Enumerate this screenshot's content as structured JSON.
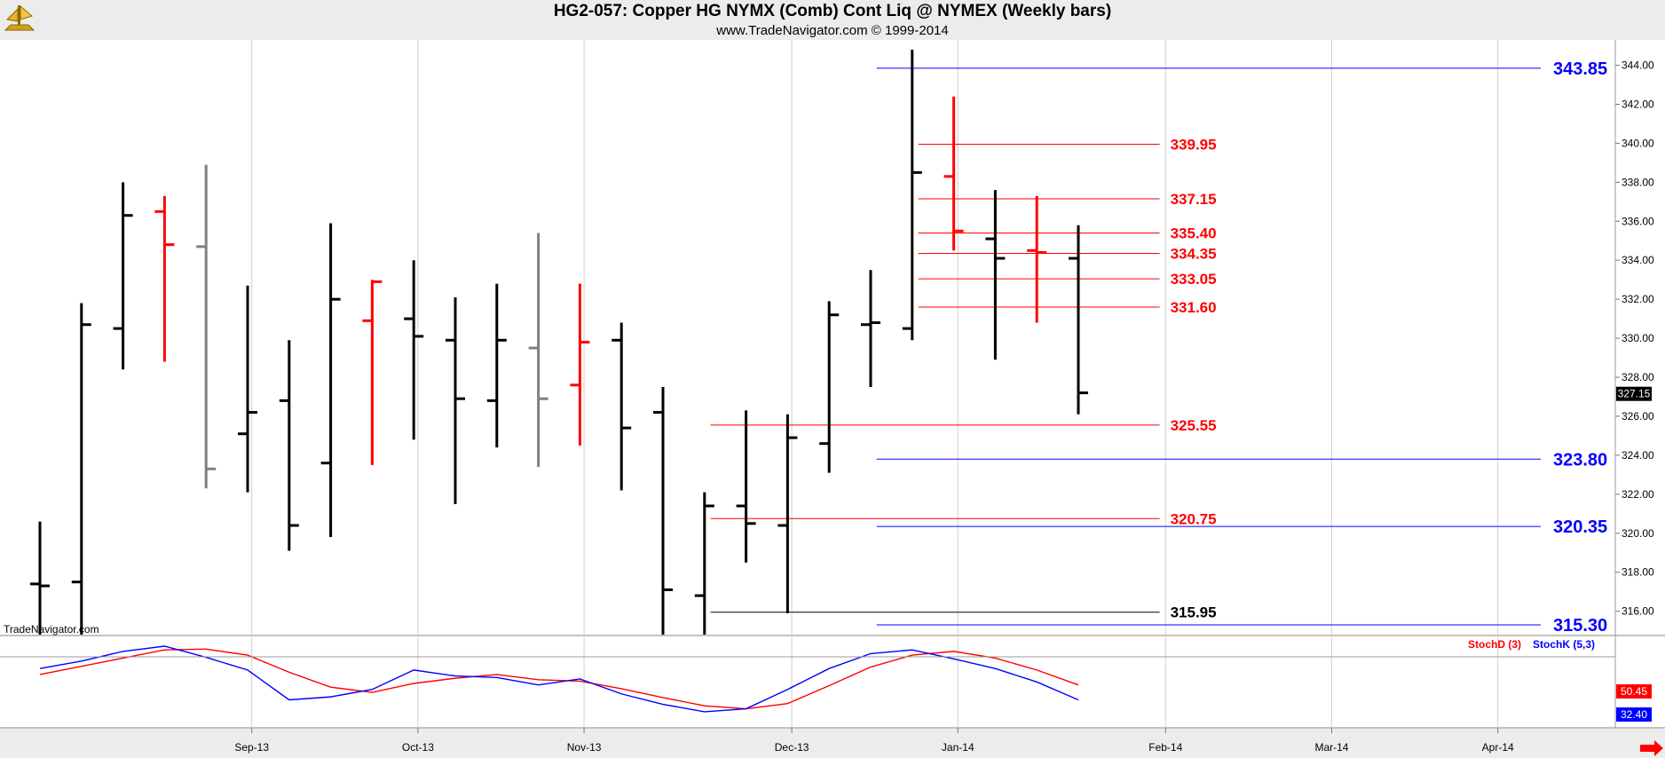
{
  "chart_data": {
    "type": "ohlc",
    "title": "HG2-057:  Copper HG NYMX (Comb) Cont Liq @ NYMEX  (Weekly bars)",
    "subtitle": "www.TradeNavigator.com © 1999-2014",
    "watermark": "TradeNavigator.com",
    "y_ticks": [
      "316.00",
      "318.00",
      "320.00",
      "322.00",
      "324.00",
      "326.00",
      "328.00",
      "330.00",
      "332.00",
      "334.00",
      "336.00",
      "338.00",
      "340.00",
      "342.00",
      "344.00"
    ],
    "ylim": [
      314.8,
      345.3
    ],
    "last_price": "327.15",
    "x_labels": [
      {
        "label": "Sep-13",
        "index": 5.1
      },
      {
        "label": "Oct-13",
        "index": 9.1
      },
      {
        "label": "Nov-13",
        "index": 13.1
      },
      {
        "label": "Dec-13",
        "index": 18.1
      },
      {
        "label": "Jan-14",
        "index": 22.1
      },
      {
        "label": "Feb-14",
        "index": 27.1
      },
      {
        "label": "Mar-14",
        "index": 31.1
      },
      {
        "label": "Apr-14",
        "index": 35.1
      }
    ],
    "bars": [
      {
        "o": 317.4,
        "h": 320.6,
        "l": 314.8,
        "c": 317.3,
        "color": "#000000"
      },
      {
        "o": 317.5,
        "h": 331.8,
        "l": 314.8,
        "c": 330.7,
        "color": "#000000"
      },
      {
        "o": 330.5,
        "h": 338.0,
        "l": 328.4,
        "c": 336.3,
        "color": "#000000"
      },
      {
        "o": 336.5,
        "h": 337.3,
        "l": 328.8,
        "c": 334.8,
        "color": "#ff0000"
      },
      {
        "o": 334.7,
        "h": 338.9,
        "l": 322.3,
        "c": 323.3,
        "color": "#808080"
      },
      {
        "o": 325.1,
        "h": 332.7,
        "l": 322.1,
        "c": 326.2,
        "color": "#000000"
      },
      {
        "o": 326.8,
        "h": 329.9,
        "l": 319.1,
        "c": 320.4,
        "color": "#000000"
      },
      {
        "o": 323.6,
        "h": 335.9,
        "l": 319.8,
        "c": 332.0,
        "color": "#000000"
      },
      {
        "o": 330.9,
        "h": 333.0,
        "l": 323.5,
        "c": 332.9,
        "color": "#ff0000"
      },
      {
        "o": 331.0,
        "h": 334.0,
        "l": 324.8,
        "c": 330.1,
        "color": "#000000"
      },
      {
        "o": 329.9,
        "h": 332.1,
        "l": 321.5,
        "c": 326.9,
        "color": "#000000"
      },
      {
        "o": 326.8,
        "h": 332.8,
        "l": 324.4,
        "c": 329.9,
        "color": "#000000"
      },
      {
        "o": 329.5,
        "h": 335.4,
        "l": 323.4,
        "c": 326.9,
        "color": "#808080"
      },
      {
        "o": 327.6,
        "h": 332.8,
        "l": 324.5,
        "c": 329.8,
        "color": "#ff0000"
      },
      {
        "o": 329.9,
        "h": 330.8,
        "l": 322.2,
        "c": 325.4,
        "color": "#000000"
      },
      {
        "o": 326.2,
        "h": 327.5,
        "l": 314.8,
        "c": 317.1,
        "color": "#000000"
      },
      {
        "o": 316.8,
        "h": 322.1,
        "l": 314.8,
        "c": 321.4,
        "color": "#000000"
      },
      {
        "o": 321.4,
        "h": 326.3,
        "l": 318.5,
        "c": 320.5,
        "color": "#000000"
      },
      {
        "o": 320.4,
        "h": 326.1,
        "l": 315.9,
        "c": 324.9,
        "color": "#000000"
      },
      {
        "o": 324.6,
        "h": 331.9,
        "l": 323.1,
        "c": 331.2,
        "color": "#000000"
      },
      {
        "o": 330.7,
        "h": 333.5,
        "l": 327.5,
        "c": 330.8,
        "color": "#000000"
      },
      {
        "o": 330.5,
        "h": 344.8,
        "l": 329.9,
        "c": 338.5,
        "color": "#000000"
      },
      {
        "o": 338.3,
        "h": 342.4,
        "l": 334.5,
        "c": 335.5,
        "color": "#ff0000"
      },
      {
        "o": 335.1,
        "h": 337.6,
        "l": 328.9,
        "c": 334.1,
        "color": "#000000"
      },
      {
        "o": 334.5,
        "h": 337.3,
        "l": 330.8,
        "c": 334.4,
        "color": "#ff0000"
      },
      {
        "o": 334.1,
        "h": 335.8,
        "l": 326.1,
        "c": 327.2,
        "color": "#000000"
      }
    ],
    "levels": [
      {
        "label": "343.85",
        "value": 343.85,
        "color": "#0000ff",
        "from": 21,
        "to": 36,
        "label_at": "right"
      },
      {
        "label": "339.95",
        "value": 339.95,
        "color": "#ff0000",
        "from": 22,
        "to": 27,
        "label_at": "mid"
      },
      {
        "label": "337.15",
        "value": 337.15,
        "color": "#ff0000",
        "from": 22,
        "to": 27,
        "label_at": "mid"
      },
      {
        "label": "335.40",
        "value": 335.4,
        "color": "#ff0000",
        "from": 22,
        "to": 27,
        "label_at": "mid"
      },
      {
        "label": "334.35",
        "value": 334.35,
        "color": "#ff0000",
        "from": 22,
        "to": 27,
        "label_at": "mid"
      },
      {
        "label": "333.05",
        "value": 333.05,
        "color": "#ff0000",
        "from": 22,
        "to": 27,
        "label_at": "mid"
      },
      {
        "label": "331.60",
        "value": 331.6,
        "color": "#ff0000",
        "from": 22,
        "to": 27,
        "label_at": "mid"
      },
      {
        "label": "325.55",
        "value": 325.55,
        "color": "#ff0000",
        "from": 17,
        "to": 27,
        "label_at": "mid"
      },
      {
        "label": "323.80",
        "value": 323.8,
        "color": "#0000ff",
        "from": 21,
        "to": 36,
        "label_at": "right"
      },
      {
        "label": "320.75",
        "value": 320.75,
        "color": "#ff0000",
        "from": 17,
        "to": 27,
        "label_at": "mid"
      },
      {
        "label": "320.35",
        "value": 320.35,
        "color": "#0000ff",
        "from": 21,
        "to": 36,
        "label_at": "right"
      },
      {
        "label": "315.95",
        "value": 315.95,
        "color": "#000000",
        "from": 17,
        "to": 27,
        "label_at": "mid"
      },
      {
        "label": "315.30",
        "value": 315.3,
        "color": "#0000ff",
        "from": 21,
        "to": 36,
        "label_at": "right"
      }
    ],
    "stochastic": {
      "legend_d": "StochD (3)",
      "legend_k": "StochK (5,3)",
      "k_value_label": "32.40",
      "d_value_label": "50.45",
      "ylim": [
        0,
        100
      ],
      "k": [
        70,
        80,
        93,
        100,
        85,
        68,
        28,
        32,
        42,
        68,
        60,
        58,
        48,
        56,
        36,
        22,
        12,
        16,
        42,
        70,
        90,
        95,
        83,
        70,
        52,
        28
      ],
      "d": [
        62,
        73,
        84,
        95,
        96,
        88,
        65,
        45,
        38,
        50,
        57,
        62,
        55,
        53,
        43,
        31,
        20,
        16,
        23,
        47,
        72,
        88,
        93,
        84,
        68,
        48
      ]
    },
    "colors": {
      "bull": "#000000",
      "bear": "#ff0000",
      "neutral": "#808080",
      "k_line": "#0000ff",
      "d_line": "#ff0000"
    }
  }
}
